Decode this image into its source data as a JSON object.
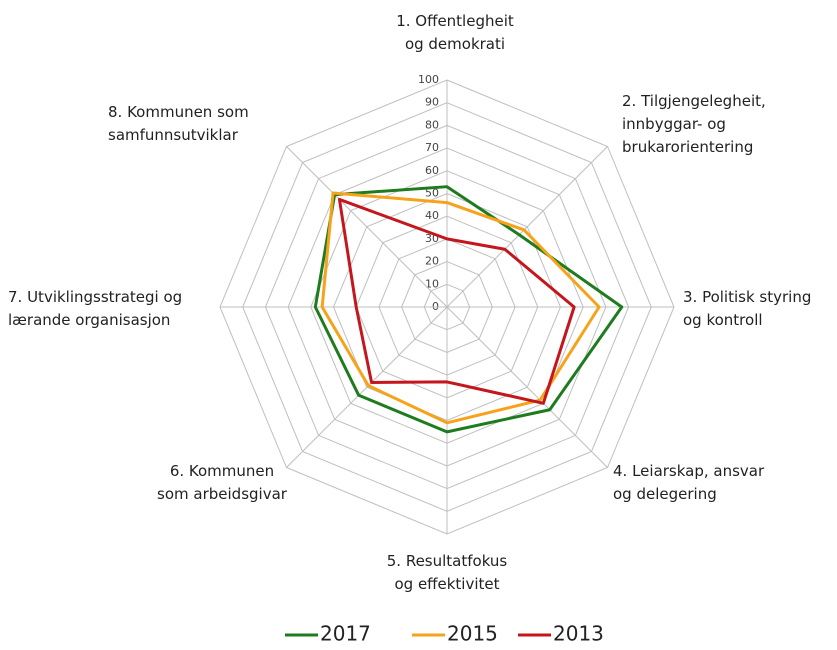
{
  "chart_data": {
    "type": "radar",
    "categories": [
      "1. Offentlegheit\nog demokrati",
      "2. Tilgjengelegheit,\ninnbyggar- og\nbrukarorientering",
      "3. Politisk styring\nog kontroll",
      "4. Leiarskap, ansvar\nog delegering",
      "5. Resultatfokus\nog effektivitet",
      "6. Kommunen\nsom arbeidsgivar",
      "7. Utviklingsstrategi og\nlærande organisasjon",
      "8. Kommunen som\nsamfunnsutviklar"
    ],
    "series": [
      {
        "name": "2017",
        "color": "#1e7b1e",
        "values": [
          53,
          45,
          77,
          64,
          55,
          55,
          58,
          70
        ]
      },
      {
        "name": "2015",
        "color": "#f7a21b",
        "values": [
          46,
          48,
          67,
          58,
          51,
          49,
          55,
          71
        ]
      },
      {
        "name": "2013",
        "color": "#c4161c",
        "values": [
          30,
          36,
          56,
          60,
          33,
          47,
          40,
          67
        ]
      }
    ],
    "ylim": [
      0,
      100
    ],
    "yticks": [
      0,
      10,
      20,
      30,
      40,
      50,
      60,
      70,
      80,
      90,
      100
    ],
    "grid": true,
    "legend": "bottom"
  }
}
